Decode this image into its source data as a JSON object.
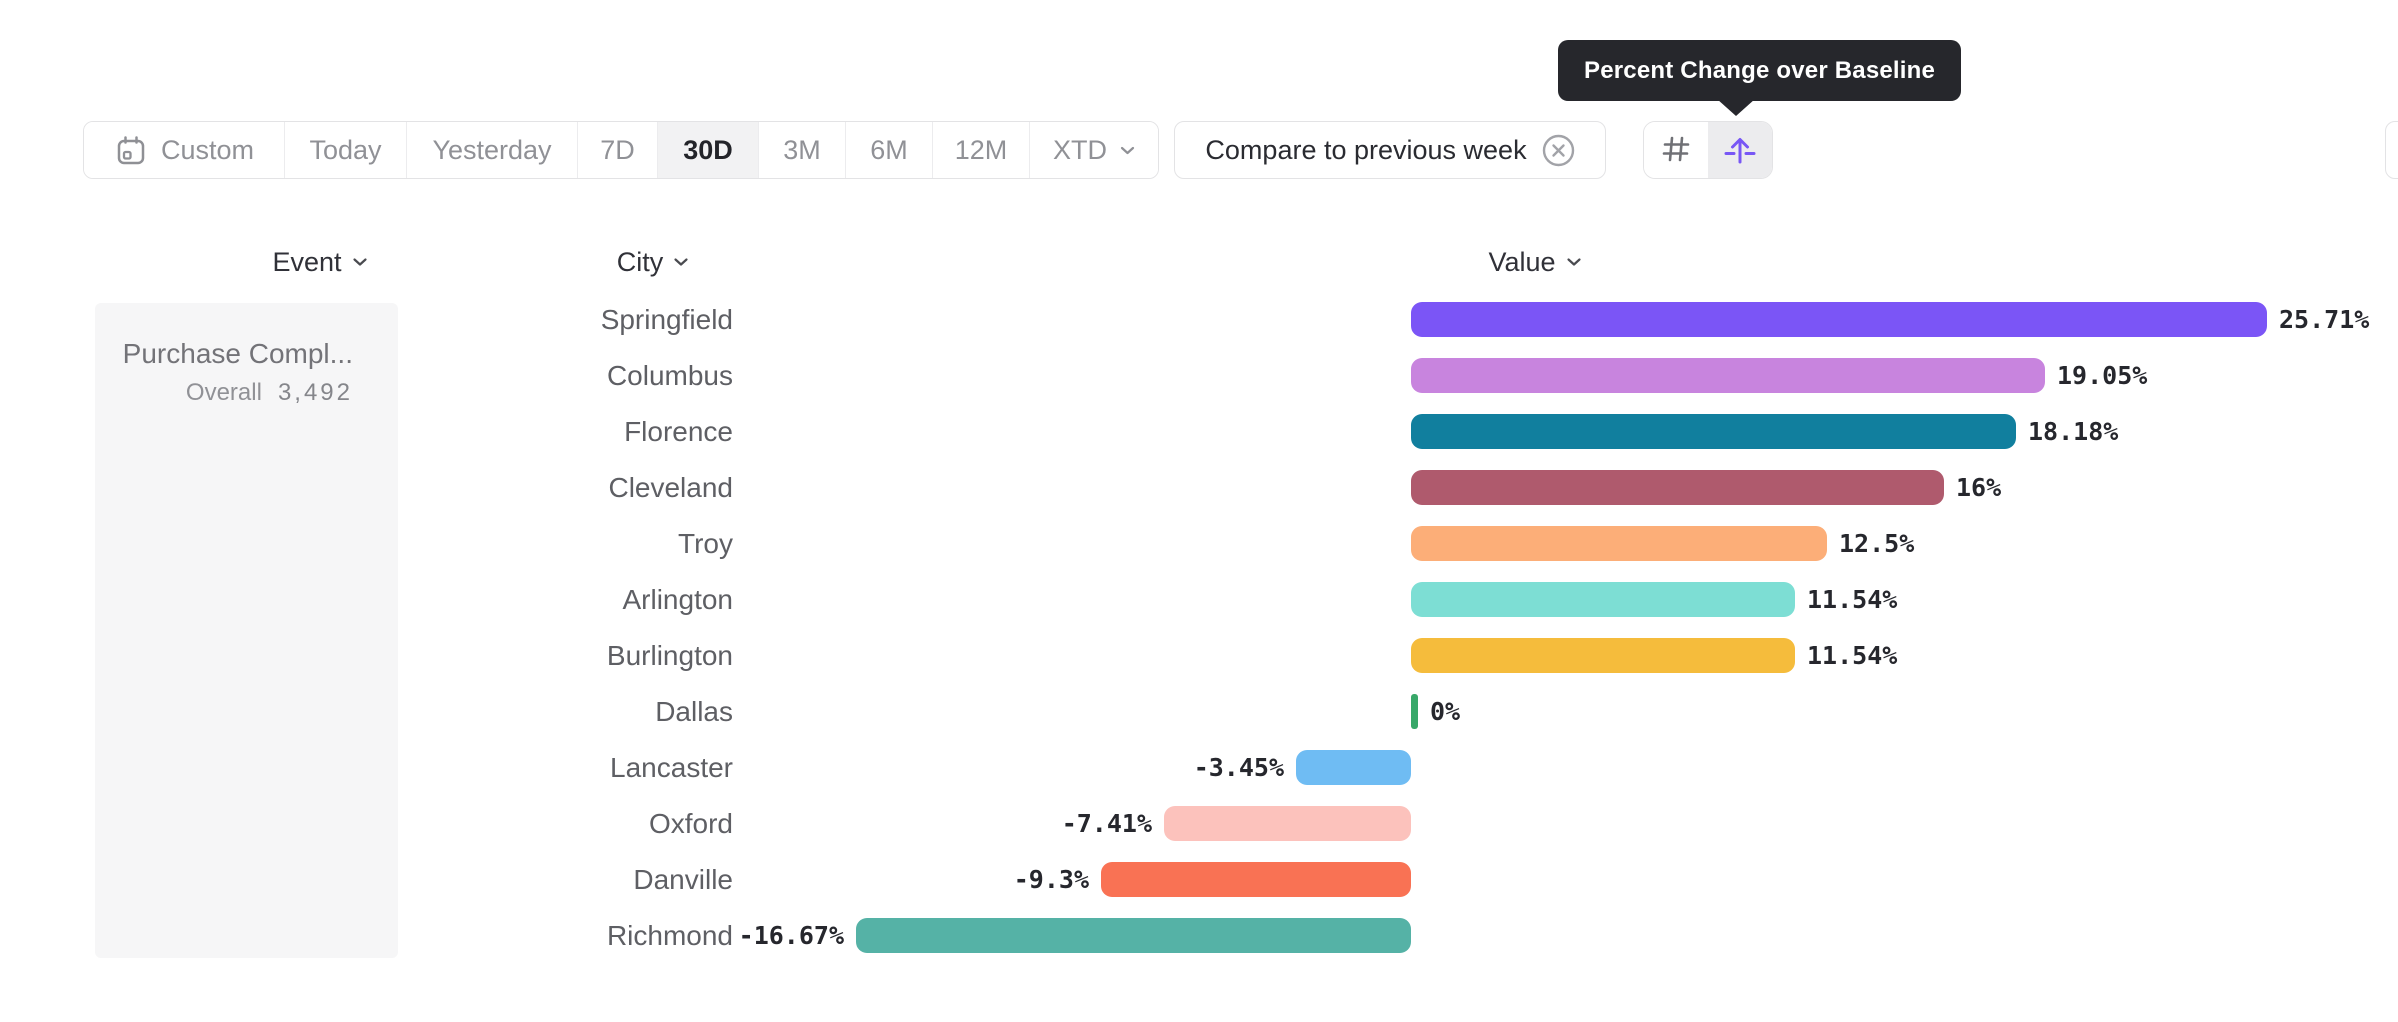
{
  "tooltip": {
    "text": "Percent Change over Baseline",
    "bg": "#26272C"
  },
  "toolbar": {
    "items": [
      {
        "label": "Custom",
        "icon": "calendar-icon",
        "selected": false
      },
      {
        "label": "Today",
        "selected": false
      },
      {
        "label": "Yesterday",
        "selected": false
      },
      {
        "label": "7D",
        "selected": false
      },
      {
        "label": "30D",
        "selected": true
      },
      {
        "label": "3M",
        "selected": false
      },
      {
        "label": "6M",
        "selected": false
      },
      {
        "label": "12M",
        "selected": false
      },
      {
        "label": "XTD",
        "chevron": true,
        "selected": false
      }
    ]
  },
  "compare_chip": {
    "label": "Compare to previous week",
    "close_icon": "circle-x-icon"
  },
  "view_toggle": {
    "options": [
      {
        "name": "values-view",
        "icon": "hash-icon",
        "selected": false
      },
      {
        "name": "percent-change-baseline-view",
        "icon": "arrow-up-from-baseline-icon",
        "selected": true,
        "accent": "#7857F5"
      }
    ]
  },
  "columns": {
    "event": "Event",
    "city": "City",
    "value": "Value"
  },
  "event_panel": {
    "name": "Purchase Compl...",
    "metric_label": "Overall",
    "metric_value": "3,492"
  },
  "chart_data": {
    "type": "bar",
    "orientation": "horizontal",
    "series_label": "Percent Change over Baseline",
    "value_format": "percent",
    "baseline": 0,
    "xlim": [
      -26,
      26
    ],
    "grid": false,
    "categories": [
      "Springfield",
      "Columbus",
      "Florence",
      "Cleveland",
      "Troy",
      "Arlington",
      "Burlington",
      "Dallas",
      "Lancaster",
      "Oxford",
      "Danville",
      "Richmond"
    ],
    "values": [
      25.71,
      19.05,
      18.18,
      16,
      12.5,
      11.54,
      11.54,
      0,
      -3.45,
      -7.41,
      -9.3,
      -16.67
    ],
    "rows": [
      {
        "city": "Springfield",
        "value": 25.71,
        "label": "25.71%",
        "color": "#7B55F6"
      },
      {
        "city": "Columbus",
        "value": 19.05,
        "label": "19.05%",
        "color": "#C884DE"
      },
      {
        "city": "Florence",
        "value": 18.18,
        "label": "18.18%",
        "color": "#117F9E"
      },
      {
        "city": "Cleveland",
        "value": 16,
        "label": "16%",
        "color": "#AF5A6D"
      },
      {
        "city": "Troy",
        "value": 12.5,
        "label": "12.5%",
        "color": "#FCAE78"
      },
      {
        "city": "Arlington",
        "value": 11.54,
        "label": "11.54%",
        "color": "#7DDED4"
      },
      {
        "city": "Burlington",
        "value": 11.54,
        "label": "11.54%",
        "color": "#F5BC3C"
      },
      {
        "city": "Dallas",
        "value": 0,
        "label": "0%",
        "color": "#38A869"
      },
      {
        "city": "Lancaster",
        "value": -3.45,
        "label": "-3.45%",
        "color": "#6FBCF3"
      },
      {
        "city": "Oxford",
        "value": -7.41,
        "label": "-7.41%",
        "color": "#FCC2BC"
      },
      {
        "city": "Danville",
        "value": -9.3,
        "label": "-9.3%",
        "color": "#F97254"
      },
      {
        "city": "Richmond",
        "value": -16.67,
        "label": "-16.67%",
        "color": "#55B2A6"
      }
    ]
  }
}
